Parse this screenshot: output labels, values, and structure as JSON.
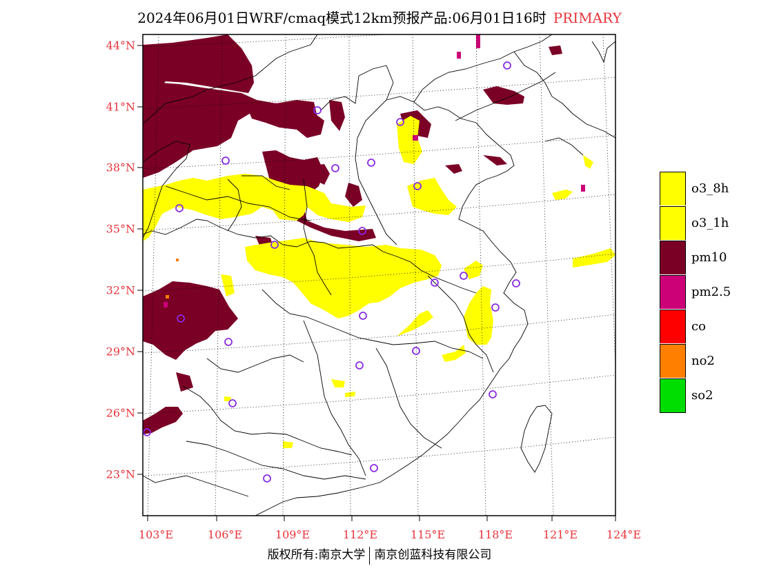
{
  "title": {
    "main": "2024年06月01日WRF/cmaq模式12km预报产品:06月01日16时",
    "product": "PRIMARY"
  },
  "axes": {
    "lat_labels": [
      "44°N",
      "41°N",
      "38°N",
      "35°N",
      "32°N",
      "29°N",
      "26°N",
      "23°N"
    ],
    "lon_labels": [
      "103°E",
      "106°E",
      "109°E",
      "112°E",
      "115°E",
      "118°E",
      "121°E",
      "124°E"
    ]
  },
  "legend": {
    "items": [
      {
        "label": "o3_8h",
        "color": "#ffff00"
      },
      {
        "label": "o3_1h",
        "color": "#ffff00"
      },
      {
        "label": "pm10",
        "color": "#7a0026"
      },
      {
        "label": "pm2.5",
        "color": "#cc0077"
      },
      {
        "label": "co",
        "color": "#ff0000"
      },
      {
        "label": "no2",
        "color": "#ff7f00"
      },
      {
        "label": "so2",
        "color": "#00dd00"
      }
    ]
  },
  "colors": {
    "accent_red": "#e8333a",
    "o3": "#ffff00",
    "pm10": "#7a0026",
    "pm25": "#cc0077",
    "city_marker": "#8a2be2"
  },
  "footer": {
    "left": "版权所有:南京大学",
    "right": "南京创蓝科技有限公司"
  }
}
